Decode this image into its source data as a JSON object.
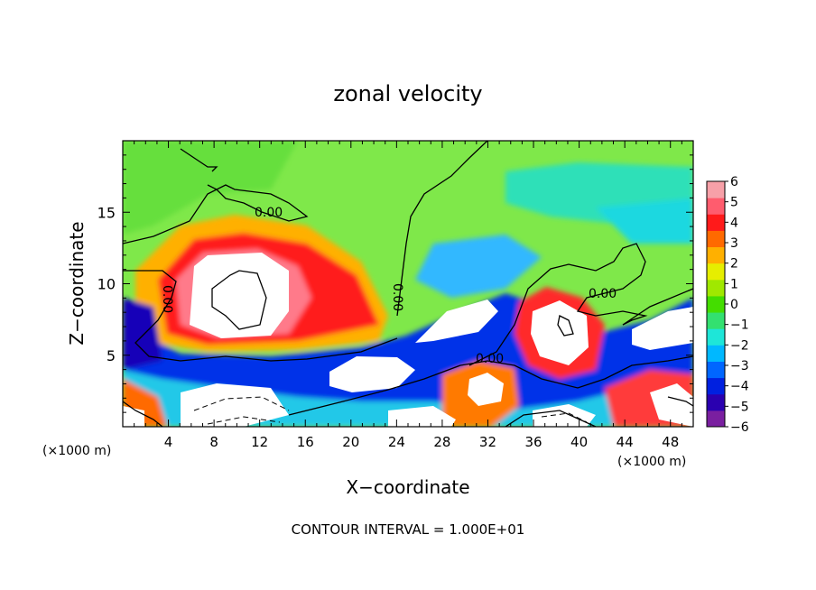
{
  "chart_data": {
    "type": "heatmap",
    "title": "zonal velocity",
    "xlabel": "X−coordinate",
    "ylabel": "Z−coordinate",
    "x_unit_left": "(×1000 m)",
    "x_unit_right": "(×1000 m)",
    "footer": "CONTOUR INTERVAL = 1.000E+01",
    "xlim": [
      0,
      50
    ],
    "ylim": [
      0,
      20
    ],
    "x_ticks": [
      4,
      8,
      12,
      16,
      20,
      24,
      28,
      32,
      36,
      40,
      44,
      48
    ],
    "y_ticks": [
      5,
      10,
      15
    ],
    "contour_labels": [
      "0.00",
      "0.00",
      "0.00",
      "0.00",
      "0.00"
    ],
    "colorbar": {
      "min": -6,
      "max": 6,
      "ticks": [
        6,
        5,
        4,
        3,
        2,
        1,
        0,
        -1,
        -2,
        -3,
        -4,
        -5,
        -6
      ],
      "tick_labels": [
        "6",
        "5",
        "4",
        "3",
        "2",
        "1",
        "0",
        "−1",
        "−2",
        "−3",
        "−4",
        "−5",
        "−6"
      ],
      "colors": [
        "#7a1fa0",
        "#2a00b0",
        "#0020e0",
        "#0066ff",
        "#00b8ff",
        "#1ee6d8",
        "#33e070",
        "#44dd00",
        "#a0e800",
        "#e6ee00",
        "#ffb000",
        "#ff6a00",
        "#ff1a1a",
        "#ff5c6e",
        "#f7a0a8"
      ],
      "saturation_color": "#ffffff"
    }
  }
}
